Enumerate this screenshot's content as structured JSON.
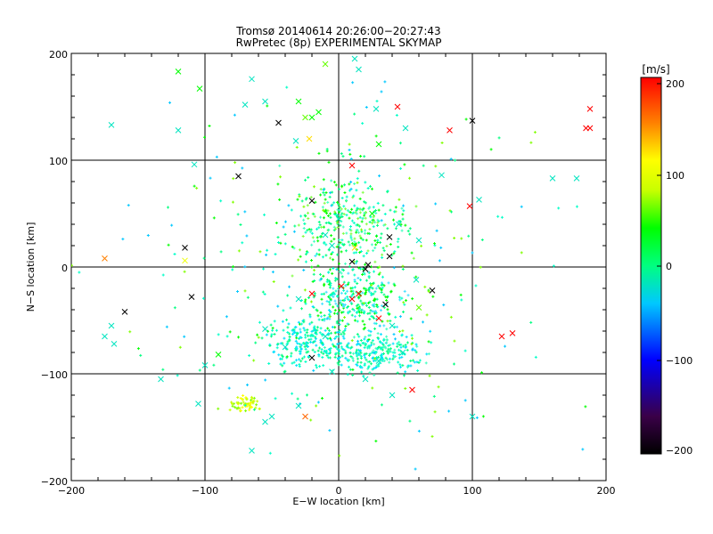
{
  "chart_data": {
    "type": "scatter",
    "title": "Tromsø 20140614 20:26:00−20:27:43",
    "subtitle": "RwPretec (8p) EXPERIMENTAL SKYMAP",
    "xlabel": "E−W location [km]",
    "ylabel": "N−S location [km]",
    "xlim": [
      -200,
      200
    ],
    "ylim": [
      -200,
      200
    ],
    "xticks": [
      "−200",
      "−100",
      "0",
      "100",
      "200"
    ],
    "yticks": [
      "−200",
      "−100",
      "0",
      "100",
      "200"
    ],
    "grid": true,
    "colorbar": {
      "label": "[m/s]",
      "range": [
        -200,
        200
      ],
      "ticks": [
        "200",
        "100",
        "0",
        "−100",
        "−200"
      ],
      "colormap": [
        "#000000",
        "#400040",
        "#0000ff",
        "#00c8ff",
        "#00ff80",
        "#00ff00",
        "#c8ff00",
        "#ffff00",
        "#ff8000",
        "#ff0000"
      ]
    },
    "markers": [
      "cross (x) for larger detections",
      "dot (+) for small detections"
    ],
    "series": [
      {
        "marker": "x",
        "points": [
          [
            -175,
            8,
            150
          ],
          [
            -160,
            -42,
            -200
          ],
          [
            -115,
            18,
            -200
          ],
          [
            -115,
            6,
            100
          ],
          [
            -110,
            -28,
            -200
          ],
          [
            -175,
            -65,
            -20
          ],
          [
            -168,
            -72,
            -20
          ],
          [
            -133,
            -105,
            -20
          ],
          [
            -105,
            -128,
            -20
          ],
          [
            -100,
            -92,
            -20
          ],
          [
            -90,
            -82,
            40
          ],
          [
            -120,
            183,
            40
          ],
          [
            -104,
            167,
            40
          ],
          [
            -170,
            133,
            -20
          ],
          [
            -120,
            128,
            -20
          ],
          [
            -108,
            96,
            -20
          ],
          [
            -65,
            176,
            -20
          ],
          [
            -70,
            152,
            -20
          ],
          [
            -55,
            155,
            -20
          ],
          [
            -45,
            135,
            -200
          ],
          [
            -32,
            118,
            -20
          ],
          [
            -30,
            155,
            40
          ],
          [
            -25,
            140,
            60
          ],
          [
            -20,
            140,
            40
          ],
          [
            -15,
            145,
            40
          ],
          [
            -22,
            120,
            120
          ],
          [
            -10,
            190,
            60
          ],
          [
            12,
            195,
            -20
          ],
          [
            15,
            185,
            -20
          ],
          [
            28,
            148,
            -20
          ],
          [
            44,
            150,
            200
          ],
          [
            50,
            130,
            -20
          ],
          [
            83,
            128,
            200
          ],
          [
            100,
            137,
            -200
          ],
          [
            98,
            57,
            200
          ],
          [
            105,
            63,
            -20
          ],
          [
            77,
            86,
            -20
          ],
          [
            38,
            28,
            -200
          ],
          [
            38,
            10,
            -200
          ],
          [
            22,
            2,
            -200
          ],
          [
            12,
            18,
            120
          ],
          [
            20,
            -2,
            -200
          ],
          [
            10,
            5,
            -200
          ],
          [
            15,
            -25,
            200
          ],
          [
            10,
            -30,
            200
          ],
          [
            2,
            -18,
            200
          ],
          [
            40,
            -55,
            -20
          ],
          [
            35,
            -35,
            -200
          ],
          [
            30,
            -48,
            200
          ],
          [
            48,
            -80,
            -20
          ],
          [
            58,
            -12,
            -20
          ],
          [
            60,
            -38,
            60
          ],
          [
            70,
            -22,
            -200
          ],
          [
            -40,
            -75,
            -20
          ],
          [
            -55,
            -58,
            -20
          ],
          [
            -20,
            -85,
            -200
          ],
          [
            -30,
            -30,
            -20
          ],
          [
            -20,
            -25,
            200
          ],
          [
            -30,
            -130,
            -20
          ],
          [
            -55,
            -145,
            -20
          ],
          [
            -50,
            -140,
            -20
          ],
          [
            -5,
            -98,
            -20
          ],
          [
            -10,
            -65,
            -20
          ],
          [
            30,
            -88,
            -20
          ],
          [
            20,
            -105,
            -20
          ],
          [
            40,
            -120,
            -20
          ],
          [
            55,
            -115,
            200
          ],
          [
            100,
            -140,
            -20
          ],
          [
            122,
            -65,
            200
          ],
          [
            130,
            -62,
            200
          ],
          [
            185,
            130,
            200
          ],
          [
            188,
            130,
            200
          ],
          [
            188,
            148,
            200
          ],
          [
            160,
            83,
            -20
          ],
          [
            178,
            83,
            -20
          ],
          [
            -75,
            85,
            -200
          ],
          [
            -20,
            62,
            -200
          ],
          [
            10,
            95,
            200
          ],
          [
            30,
            115,
            40
          ],
          [
            0,
            45,
            -20
          ],
          [
            -10,
            30,
            -20
          ],
          [
            -5,
            20,
            -20
          ],
          [
            25,
            50,
            40
          ],
          [
            45,
            40,
            -20
          ],
          [
            60,
            25,
            -20
          ],
          [
            -170,
            -55,
            -20
          ],
          [
            -65,
            -172,
            -20
          ],
          [
            -25,
            -140,
            160
          ]
        ]
      },
      {
        "marker": "dot",
        "clusters": [
          {
            "center": [
              5,
              40
            ],
            "spread": [
              40,
              40
            ],
            "count": 320,
            "colors": [
              "#00ff00",
              "#00ff80",
              "#40ffc0",
              "#00ffc8",
              "#80ff40"
            ]
          },
          {
            "center": [
              10,
              -30
            ],
            "spread": [
              35,
              30
            ],
            "count": 300,
            "colors": [
              "#00ff00",
              "#00ff80",
              "#00ffc8",
              "#40e0ff"
            ]
          },
          {
            "center": [
              25,
              -80
            ],
            "spread": [
              35,
              20
            ],
            "count": 260,
            "colors": [
              "#00e0ff",
              "#00ffc8",
              "#40ffc0",
              "#00ff80"
            ]
          },
          {
            "center": [
              -25,
              -70
            ],
            "spread": [
              30,
              25
            ],
            "count": 200,
            "colors": [
              "#00e0ff",
              "#00ffc8",
              "#00ff80"
            ]
          },
          {
            "center": [
              -70,
              -128
            ],
            "spread": [
              10,
              8
            ],
            "count": 60,
            "colors": [
              "#c8ff00",
              "#ffff00",
              "#80ff00"
            ]
          },
          {
            "center": [
              0,
              0
            ],
            "spread": [
              140,
              150
            ],
            "count": 320,
            "colors": [
              "#00ff80",
              "#00ffc8",
              "#00c8ff",
              "#00ff00",
              "#80ff00"
            ]
          }
        ]
      }
    ]
  }
}
